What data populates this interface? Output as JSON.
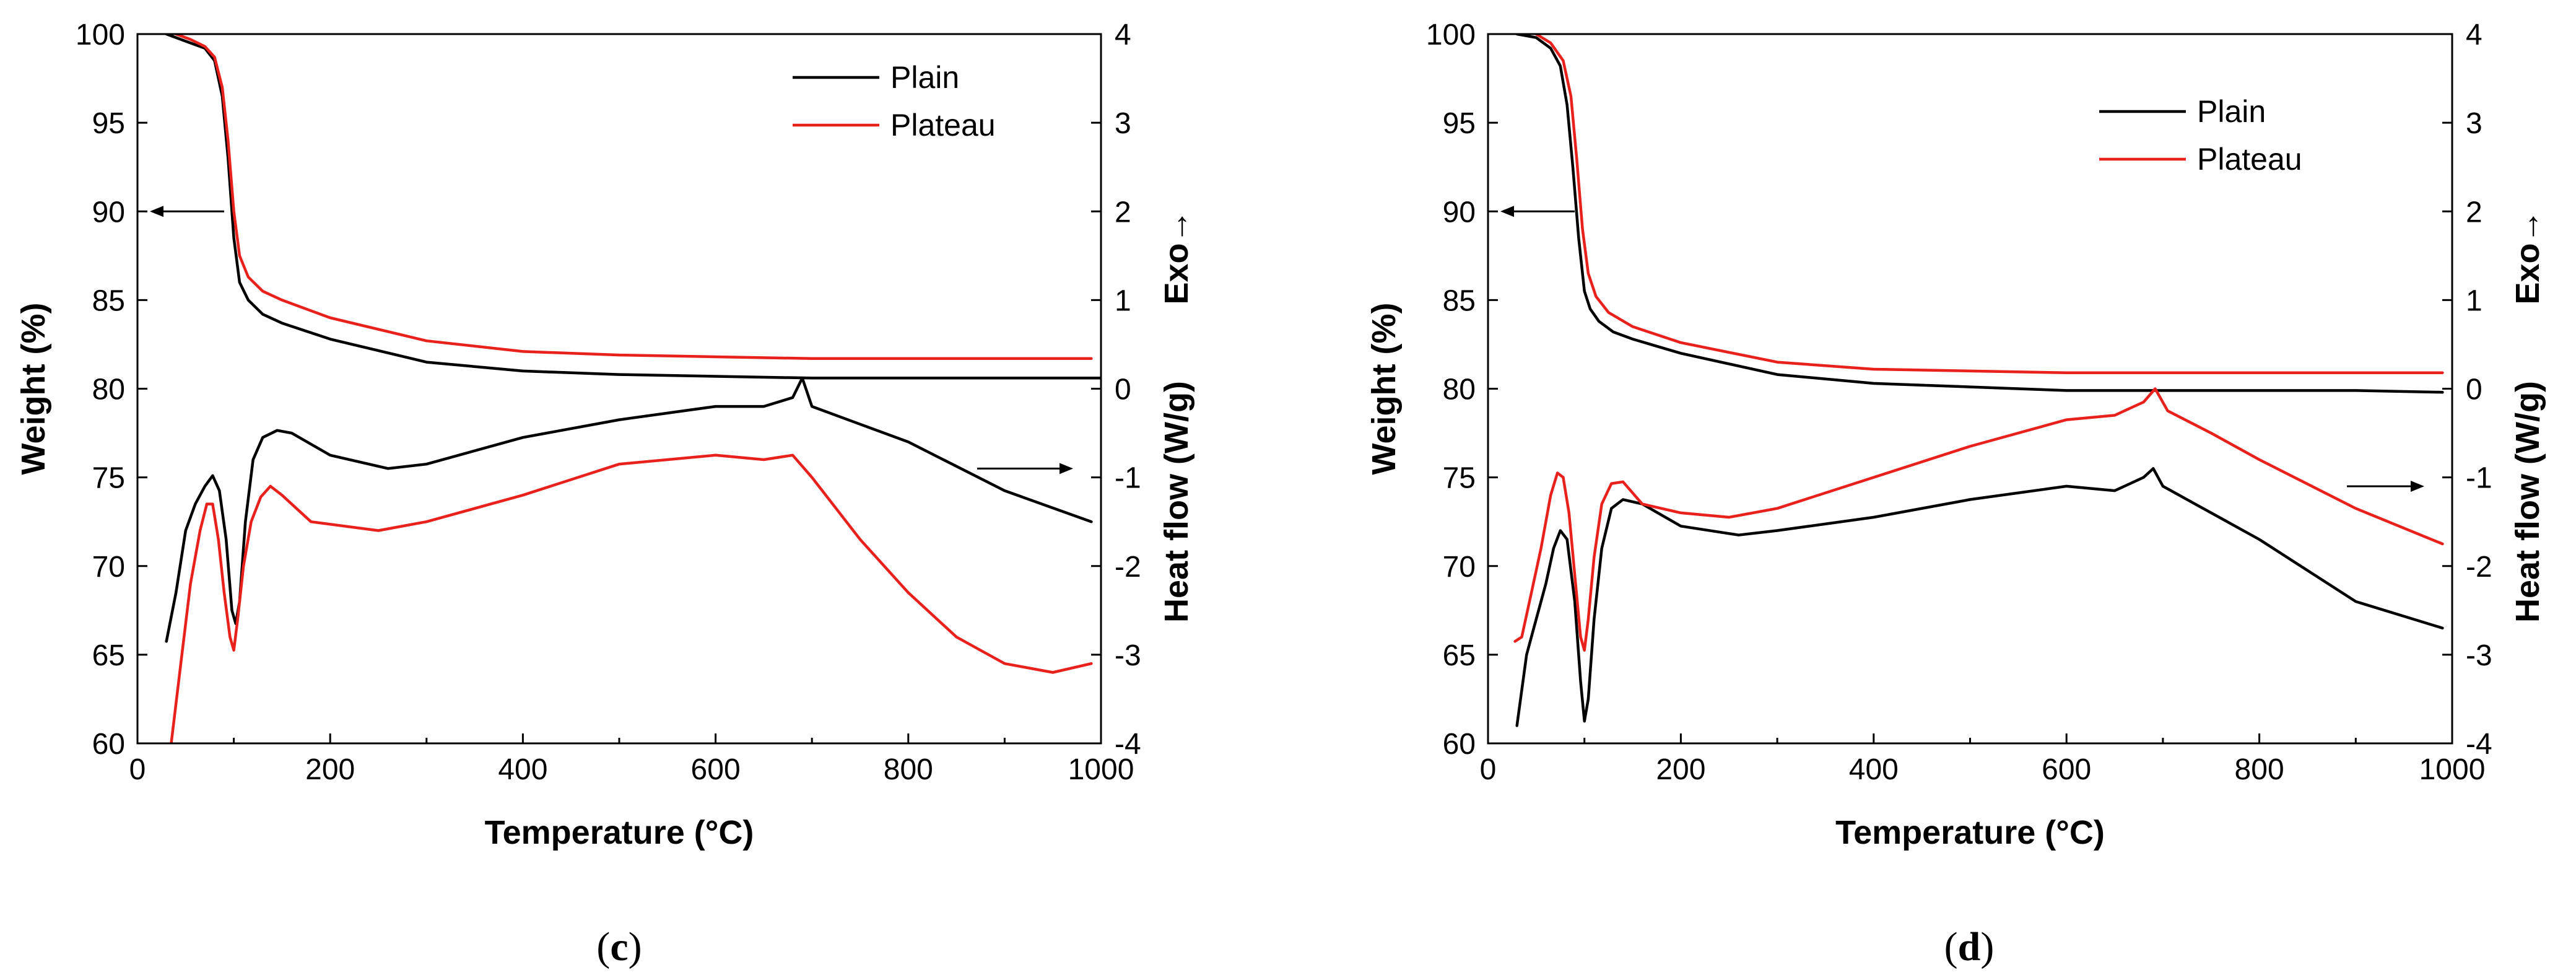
{
  "chart_data": [
    {
      "type": "line",
      "panel_label": "c",
      "caption_open": "(",
      "caption_close": ")",
      "xlabel": "Temperature (°C)",
      "ylabel_left": "Weight (%)",
      "ylabel_right": "Heat flow (W/g)",
      "ylabel_right_exo": "Exo→",
      "xlim": [
        0,
        1000
      ],
      "ylim_left": [
        60,
        100
      ],
      "ylim_right": [
        -4,
        4
      ],
      "x_ticks": [
        "0",
        "200",
        "400",
        "600",
        "800",
        "1000"
      ],
      "y_left_ticks": [
        "60",
        "65",
        "70",
        "75",
        "80",
        "85",
        "90",
        "95",
        "100"
      ],
      "y_right_ticks": [
        "-4",
        "-3",
        "-2",
        "-1",
        "0",
        "1",
        "2",
        "3",
        "4"
      ],
      "legend": [
        "Plain",
        "Plateau"
      ],
      "legend_position": "top-right",
      "colors": {
        "Plain": "#000000",
        "Plateau": "#e8211c"
      },
      "series": [
        {
          "name": "Plain",
          "quantity": "weight",
          "axis": "left",
          "color": "#000000",
          "x": [
            30,
            50,
            70,
            80,
            88,
            94,
            100,
            106,
            115,
            130,
            150,
            200,
            300,
            400,
            500,
            600,
            700,
            800,
            900,
            1000
          ],
          "y": [
            100,
            99.6,
            99.2,
            98.5,
            96.5,
            93,
            88.5,
            86,
            85,
            84.2,
            83.7,
            82.8,
            81.5,
            81,
            80.8,
            80.7,
            80.6,
            80.6,
            80.6,
            80.6
          ]
        },
        {
          "name": "Plateau",
          "quantity": "weight",
          "axis": "left",
          "color": "#e8211c",
          "x": [
            40,
            55,
            70,
            80,
            88,
            94,
            100,
            106,
            115,
            130,
            150,
            200,
            300,
            400,
            500,
            600,
            700,
            800,
            900,
            990
          ],
          "y": [
            100,
            99.7,
            99.3,
            98.7,
            97,
            94,
            90,
            87.5,
            86.3,
            85.5,
            85,
            84,
            82.7,
            82.1,
            81.9,
            81.8,
            81.7,
            81.7,
            81.7,
            81.7
          ]
        },
        {
          "name": "Plain",
          "quantity": "heat flow",
          "axis": "right",
          "color": "#000000",
          "x": [
            30,
            40,
            50,
            60,
            70,
            78,
            85,
            92,
            98,
            102,
            106,
            112,
            120,
            130,
            145,
            160,
            200,
            260,
            300,
            400,
            500,
            600,
            650,
            680,
            690,
            700,
            750,
            800,
            900,
            990
          ],
          "y": [
            -2.85,
            -2.3,
            -1.6,
            -1.3,
            -1.1,
            -0.98,
            -1.15,
            -1.7,
            -2.5,
            -2.65,
            -2.4,
            -1.5,
            -0.8,
            -0.55,
            -0.47,
            -0.5,
            -0.75,
            -0.9,
            -0.85,
            -0.55,
            -0.35,
            -0.2,
            -0.2,
            -0.1,
            0.12,
            -0.2,
            -0.4,
            -0.6,
            -1.15,
            -1.5
          ]
        },
        {
          "name": "Plateau",
          "quantity": "heat flow",
          "axis": "right",
          "color": "#e8211c",
          "x": [
            35,
            45,
            55,
            65,
            72,
            78,
            84,
            90,
            96,
            100,
            104,
            110,
            118,
            128,
            138,
            150,
            180,
            250,
            300,
            400,
            500,
            600,
            650,
            680,
            700,
            750,
            800,
            850,
            900,
            950,
            990
          ],
          "y": [
            -4.0,
            -3.1,
            -2.2,
            -1.6,
            -1.3,
            -1.3,
            -1.7,
            -2.3,
            -2.8,
            -2.95,
            -2.6,
            -2.0,
            -1.5,
            -1.22,
            -1.1,
            -1.2,
            -1.5,
            -1.6,
            -1.5,
            -1.2,
            -0.85,
            -0.75,
            -0.8,
            -0.75,
            -1.0,
            -1.7,
            -2.3,
            -2.8,
            -3.1,
            -3.2,
            -3.1
          ]
        }
      ]
    },
    {
      "type": "line",
      "panel_label": "d",
      "caption_open": "(",
      "caption_close": ")",
      "xlabel": "Temperature (°C)",
      "ylabel_left": "Weight (%)",
      "ylabel_right": "Heat flow (W/g)",
      "ylabel_right_exo": "Exo→",
      "xlim": [
        0,
        1000
      ],
      "ylim_left": [
        60,
        100
      ],
      "ylim_right": [
        -4,
        4
      ],
      "x_ticks": [
        "0",
        "200",
        "400",
        "600",
        "800",
        "1000"
      ],
      "y_left_ticks": [
        "60",
        "65",
        "70",
        "75",
        "80",
        "85",
        "90",
        "95",
        "100"
      ],
      "y_right_ticks": [
        "-4",
        "-3",
        "-2",
        "-1",
        "0",
        "1",
        "2",
        "3",
        "4"
      ],
      "legend": [
        "Plain",
        "Plateau"
      ],
      "legend_position": "top-right",
      "colors": {
        "Plain": "#000000",
        "Plateau": "#e8211c"
      },
      "series": [
        {
          "name": "Plain",
          "quantity": "weight",
          "axis": "left",
          "color": "#000000",
          "x": [
            30,
            50,
            65,
            75,
            82,
            88,
            94,
            100,
            106,
            115,
            130,
            150,
            200,
            300,
            400,
            500,
            600,
            700,
            800,
            900,
            990
          ],
          "y": [
            100,
            99.8,
            99.2,
            98.2,
            96,
            92.5,
            88.5,
            85.5,
            84.5,
            83.8,
            83.2,
            82.8,
            82,
            80.8,
            80.3,
            80.1,
            79.9,
            79.9,
            79.9,
            79.9,
            79.8
          ]
        },
        {
          "name": "Plateau",
          "quantity": "weight",
          "axis": "left",
          "color": "#e8211c",
          "x": [
            50,
            65,
            78,
            86,
            92,
            98,
            104,
            112,
            125,
            150,
            200,
            300,
            400,
            500,
            600,
            700,
            800,
            900,
            990
          ],
          "y": [
            100,
            99.5,
            98.5,
            96.5,
            93,
            89,
            86.5,
            85.2,
            84.3,
            83.5,
            82.6,
            81.5,
            81.1,
            81,
            80.9,
            80.9,
            80.9,
            80.9,
            80.9
          ]
        },
        {
          "name": "Plain",
          "quantity": "heat flow",
          "axis": "right",
          "color": "#000000",
          "x": [
            30,
            40,
            50,
            60,
            68,
            75,
            82,
            90,
            96,
            100,
            104,
            110,
            118,
            128,
            140,
            160,
            200,
            260,
            300,
            400,
            500,
            600,
            650,
            680,
            690,
            700,
            750,
            800,
            900,
            990
          ],
          "y": [
            -3.8,
            -3.0,
            -2.6,
            -2.2,
            -1.8,
            -1.6,
            -1.7,
            -2.4,
            -3.3,
            -3.75,
            -3.5,
            -2.6,
            -1.8,
            -1.35,
            -1.25,
            -1.3,
            -1.55,
            -1.65,
            -1.6,
            -1.45,
            -1.25,
            -1.1,
            -1.15,
            -1.0,
            -0.9,
            -1.1,
            -1.4,
            -1.7,
            -2.4,
            -2.7
          ]
        },
        {
          "name": "Plateau",
          "quantity": "heat flow",
          "axis": "right",
          "color": "#e8211c",
          "x": [
            28,
            35,
            45,
            55,
            65,
            72,
            78,
            84,
            90,
            96,
            100,
            104,
            110,
            118,
            128,
            140,
            160,
            200,
            250,
            300,
            400,
            500,
            600,
            650,
            680,
            692,
            705,
            750,
            800,
            900,
            990
          ],
          "y": [
            -2.85,
            -2.8,
            -2.3,
            -1.8,
            -1.2,
            -0.95,
            -1.0,
            -1.4,
            -2.1,
            -2.8,
            -2.95,
            -2.6,
            -1.9,
            -1.3,
            -1.07,
            -1.05,
            -1.3,
            -1.4,
            -1.45,
            -1.35,
            -1.0,
            -0.65,
            -0.35,
            -0.3,
            -0.15,
            0.0,
            -0.25,
            -0.5,
            -0.8,
            -1.35,
            -1.75
          ]
        }
      ]
    }
  ]
}
